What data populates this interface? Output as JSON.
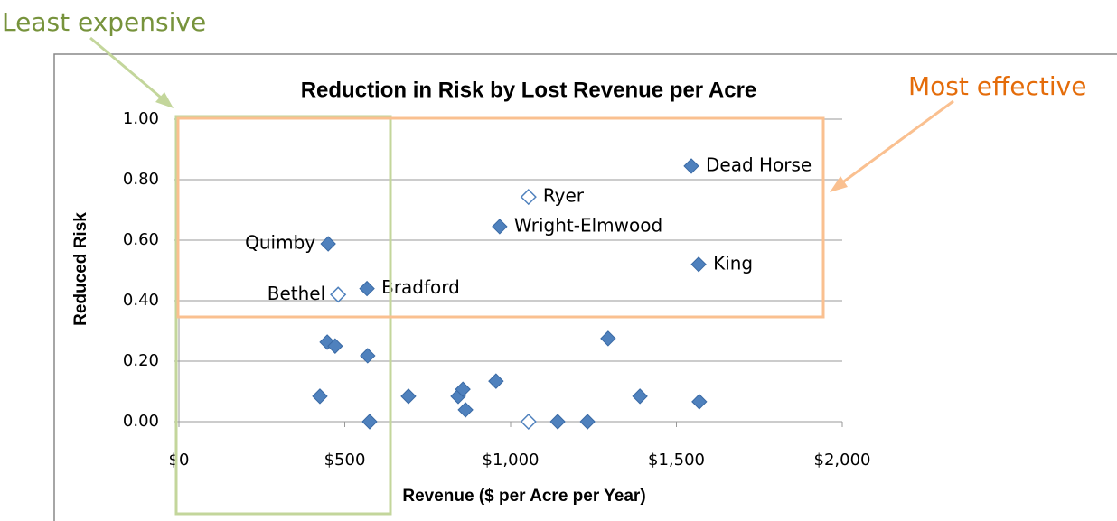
{
  "chart_data": {
    "type": "scatter",
    "title": "Reduction in Risk by Lost Revenue per Acre",
    "xlabel": "Revenue ($ per Acre per Year)",
    "ylabel": "Reduced Risk",
    "annotations": [
      "Least expensive",
      "Most effective"
    ],
    "series": [
      {
        "color": "#4f81bd",
        "marker": "filled",
        "x": [
          1545,
          967,
          1567,
          450,
          567,
          447,
          471,
          569,
          425,
          575,
          692,
          842,
          856,
          864,
          956,
          1142,
          1232,
          1294,
          1390,
          1569
        ],
        "values": [
          0.845,
          0.645,
          0.52,
          0.588,
          0.44,
          0.263,
          0.25,
          0.218,
          0.084,
          0,
          0.084,
          0.084,
          0.107,
          0.039,
          0.134,
          0,
          0,
          0.275,
          0.084,
          0.066
        ],
        "point_labels": [
          "Dead Horse",
          "Wright-Elmwood",
          "King",
          "Quimby",
          "Bradford",
          null,
          null,
          null,
          null,
          null,
          null,
          null,
          null,
          null,
          null,
          null,
          null,
          null,
          null,
          null
        ]
      },
      {
        "color": "#4f81bd",
        "marker": "hollow",
        "x": [
          1054,
          480,
          1054
        ],
        "values": [
          0.743,
          0.42,
          0
        ],
        "point_labels": [
          "Ryer",
          "Bethel",
          null
        ]
      }
    ],
    "xlim": [
      0,
      2000
    ],
    "xticks": [
      {
        "value": 0,
        "label": "$0"
      },
      {
        "value": 500,
        "label": "$500"
      },
      {
        "value": 1000,
        "label": "$1,000"
      },
      {
        "value": 1500,
        "label": "$1,500"
      },
      {
        "value": 2000,
        "label": "$2,000"
      }
    ],
    "ylim": [
      0,
      1
    ],
    "yticks": [
      {
        "value": 0,
        "label": "0.00"
      },
      {
        "value": 0.2,
        "label": "0.20"
      },
      {
        "value": 0.4,
        "label": "0.40"
      },
      {
        "value": 0.6,
        "label": "0.60"
      },
      {
        "value": 0.8,
        "label": "0.80"
      },
      {
        "value": 1,
        "label": "1.00"
      }
    ],
    "grid": true
  }
}
